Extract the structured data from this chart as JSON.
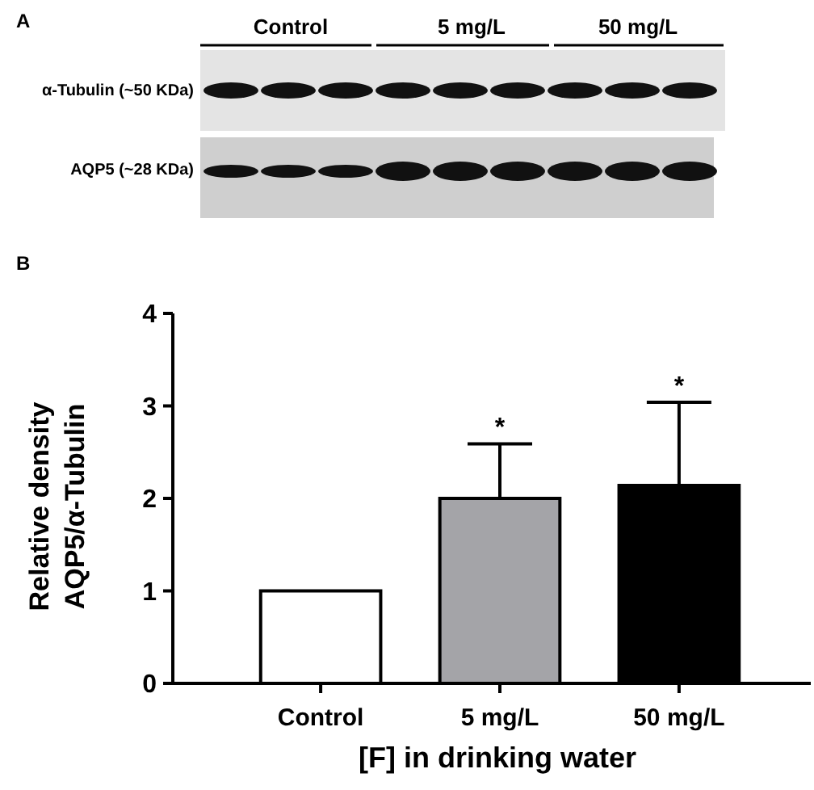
{
  "chart_data": {
    "type": "bar",
    "xlabel": "[F] in drinking water",
    "ylabel": "Relative density\nAQP5/α-Tubulin",
    "categories": [
      "Control",
      "5 mg/L",
      "50 mg/L"
    ],
    "values": [
      1,
      2.0,
      2.14
    ],
    "colors": [
      "#ffffff",
      "#a4a4a8",
      "#000000"
    ],
    "errors": [
      null,
      [
        2.0,
        2.59
      ],
      [
        2.14,
        3.04
      ]
    ],
    "ylim": [
      0,
      4
    ],
    "yticks": [
      0,
      1,
      2,
      3,
      4
    ],
    "annotations": [
      "A",
      "B",
      "Control",
      "5 mg/L",
      "50 mg/L",
      "α-Tubulin (~50 KDa)",
      "AQP5 (~28 KDa)",
      {
        "text": "*",
        "x": "5 mg/L",
        "y": 2.59
      },
      {
        "text": "*",
        "x": "50 mg/L",
        "y": 3.04
      }
    ]
  }
}
